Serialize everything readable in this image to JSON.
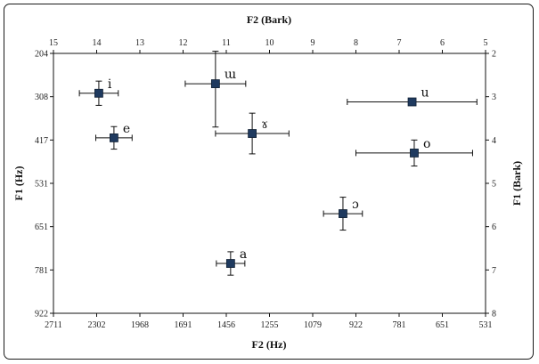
{
  "chart_data": {
    "type": "scatter",
    "title": "",
    "axes": {
      "bottom": {
        "title": "F2 (Hz)",
        "tick_labels": [
          "2711",
          "2302",
          "1968",
          "1691",
          "1456",
          "1255",
          "1079",
          "922",
          "781",
          "651",
          "531"
        ]
      },
      "top": {
        "title": "F2 (Bark)",
        "tick_labels": [
          "15",
          "14",
          "13",
          "12",
          "11",
          "10",
          "9",
          "8",
          "7",
          "6",
          "5"
        ],
        "range": [
          15,
          5
        ]
      },
      "left": {
        "title": "F1 (Hz)",
        "tick_labels": [
          "204",
          "308",
          "417",
          "531",
          "651",
          "781",
          "922"
        ]
      },
      "right": {
        "title": "F1 (Bark)",
        "tick_labels": [
          "2",
          "3",
          "4",
          "5",
          "6",
          "7",
          "8"
        ],
        "range": [
          2,
          8
        ]
      }
    },
    "points": [
      {
        "label": "i",
        "f2_bark": 13.95,
        "f1_bark": 2.92,
        "f2_err": 0.45,
        "f1_err": 0.28
      },
      {
        "label": "e",
        "f2_bark": 13.6,
        "f1_bark": 3.95,
        "f2_err": 0.42,
        "f1_err": 0.26
      },
      {
        "label": "ɯ",
        "f2_bark": 11.25,
        "f1_bark": 2.7,
        "f2_err": 0.7,
        "f1_err_low": 0.75,
        "f1_err_high": 1.0
      },
      {
        "label": "ɤ",
        "f2_bark": 10.4,
        "f1_bark": 3.85,
        "f2_err": 0.85,
        "f1_err": 0.47
      },
      {
        "label": "a",
        "f2_bark": 10.9,
        "f1_bark": 6.85,
        "f2_err": 0.33,
        "f1_err": 0.27
      },
      {
        "label": "u",
        "f2_bark": 6.7,
        "f1_bark": 3.12,
        "f2_err": 1.5,
        "f1_err": 0
      },
      {
        "label": "o",
        "f2_bark": 6.65,
        "f1_bark": 4.3,
        "f2_err": 1.35,
        "f1_err": 0.3
      },
      {
        "label": "ɔ",
        "f2_bark": 8.3,
        "f1_bark": 5.7,
        "f2_err": 0.45,
        "f1_err": 0.38
      }
    ]
  }
}
